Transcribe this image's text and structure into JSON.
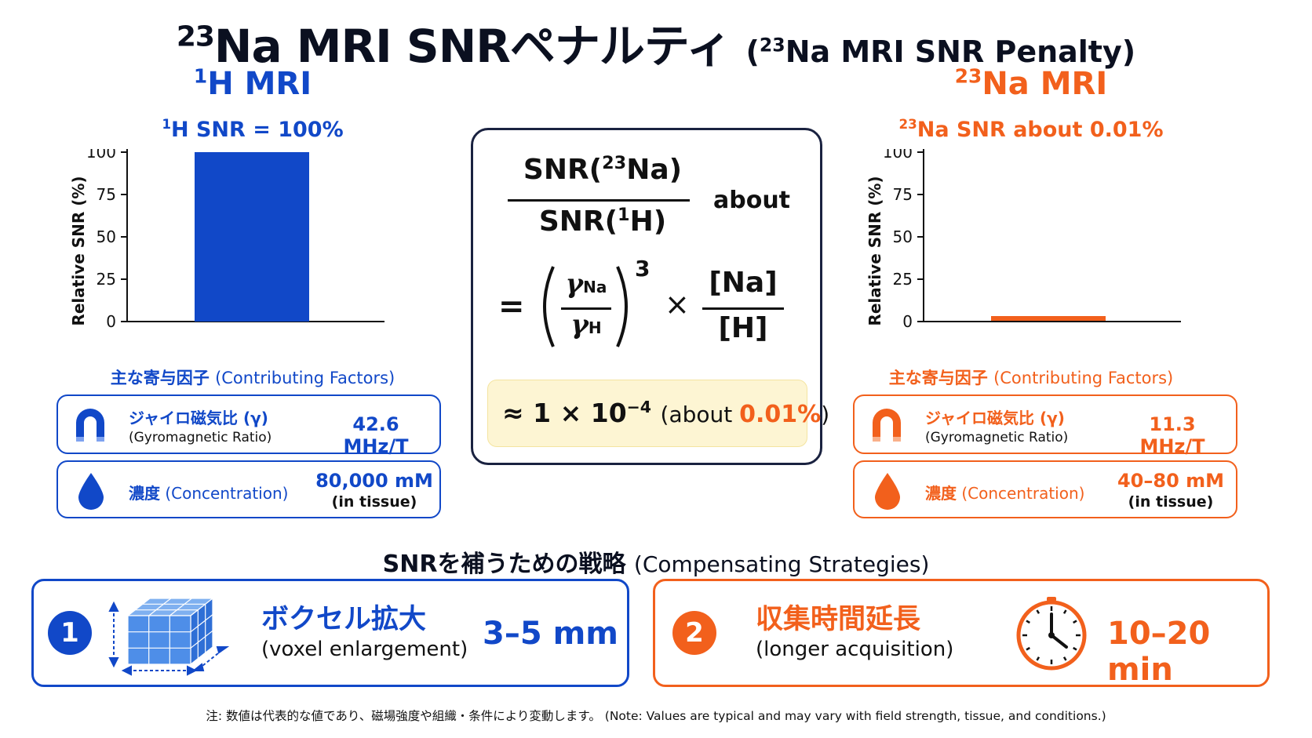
{
  "title": {
    "main_sup": "23",
    "main": "Na MRI SNRペナルティ",
    "sub_open": "(",
    "sub_sup": "23",
    "sub": "Na MRI SNR Penalty)"
  },
  "left": {
    "heading_sup": "1",
    "heading": "H MRI",
    "snr_sup": "1",
    "snr_label": "H SNR = 100%",
    "factors_title_ja": "主な寄与因子",
    "factors_title_en": "(Contributing Factors)",
    "factors": [
      {
        "icon": "magnet-icon",
        "name_ja": "ジャイロ磁気比 (γ)",
        "name_en": "(Gyromagnetic Ratio)",
        "value": "42.6 MHz/T",
        "note": ""
      },
      {
        "icon": "drop-icon",
        "name_ja": "濃度",
        "name_en": "(Concentration)",
        "value": "80,000 mM",
        "note": "(in tissue)"
      }
    ]
  },
  "right": {
    "heading_sup": "23",
    "heading": "Na MRI",
    "snr_sup": "23",
    "snr_label": "Na SNR about 0.01%",
    "factors_title_ja": "主な寄与因子",
    "factors_title_en": "(Contributing Factors)",
    "factors": [
      {
        "icon": "magnet-icon",
        "name_ja": "ジャイロ磁気比 (γ)",
        "name_en": "(Gyromagnetic Ratio)",
        "value": "11.3 MHz/T",
        "note": ""
      },
      {
        "icon": "drop-icon",
        "name_ja": "濃度",
        "name_en": "(Concentration)",
        "value": "40–80 mM",
        "note": "(in tissue)"
      }
    ]
  },
  "chart_data": [
    {
      "type": "bar",
      "ylabel": "Relative SNR (%)",
      "yticks": [
        0,
        25,
        50,
        75,
        100
      ],
      "ylim": [
        0,
        100
      ],
      "categories": [
        ""
      ],
      "values": [
        100
      ],
      "color": "#1148c8"
    },
    {
      "type": "bar",
      "ylabel": "Relative SNR (%)",
      "yticks": [
        0,
        25,
        50,
        75,
        100
      ],
      "ylim": [
        0,
        100
      ],
      "categories": [
        ""
      ],
      "values": [
        0.01
      ],
      "color": "#f2601c"
    }
  ],
  "formula": {
    "numerator": "SNR(",
    "numerator_sup": "23",
    "numerator_end": "Na)",
    "denominator": "SNR(",
    "denominator_sup": "1",
    "denominator_end": "H)",
    "about": "about",
    "equals": "=",
    "gamma_num": "γ",
    "gamma_num_sub": "Na",
    "gamma_den": "γ",
    "gamma_den_sub": "H",
    "power": "3",
    "times": "×",
    "conc_num": "[Na]",
    "conc_den": "[H]",
    "approx_prefix": "≈ 1 × 10",
    "approx_exp": "−4",
    "approx_about": "(about ",
    "approx_pct": "0.01%",
    "approx_close": ")"
  },
  "strategies": {
    "title_ja": "SNRを補うための戦略",
    "title_en": "(Compensating Strategies)",
    "items": [
      {
        "num": "1",
        "icon": "voxel-cube-icon",
        "name_ja": "ボクセル拡大",
        "name_en": "(voxel enlargement)",
        "value": "3–5 mm"
      },
      {
        "num": "2",
        "icon": "clock-icon",
        "name_ja": "収集時間延長",
        "name_en": "(longer acquisition)",
        "value": "10–20 min"
      }
    ]
  },
  "footnote": "注: 数値は代表的な値であり、磁場強度や組織・条件により変動します。 (Note: Values are typical and may vary with field strength, tissue, and conditions.)",
  "colors": {
    "blue": "#1148c8",
    "orange": "#f2601c",
    "navy": "#1a2240",
    "cream": "#fdf5d3"
  }
}
